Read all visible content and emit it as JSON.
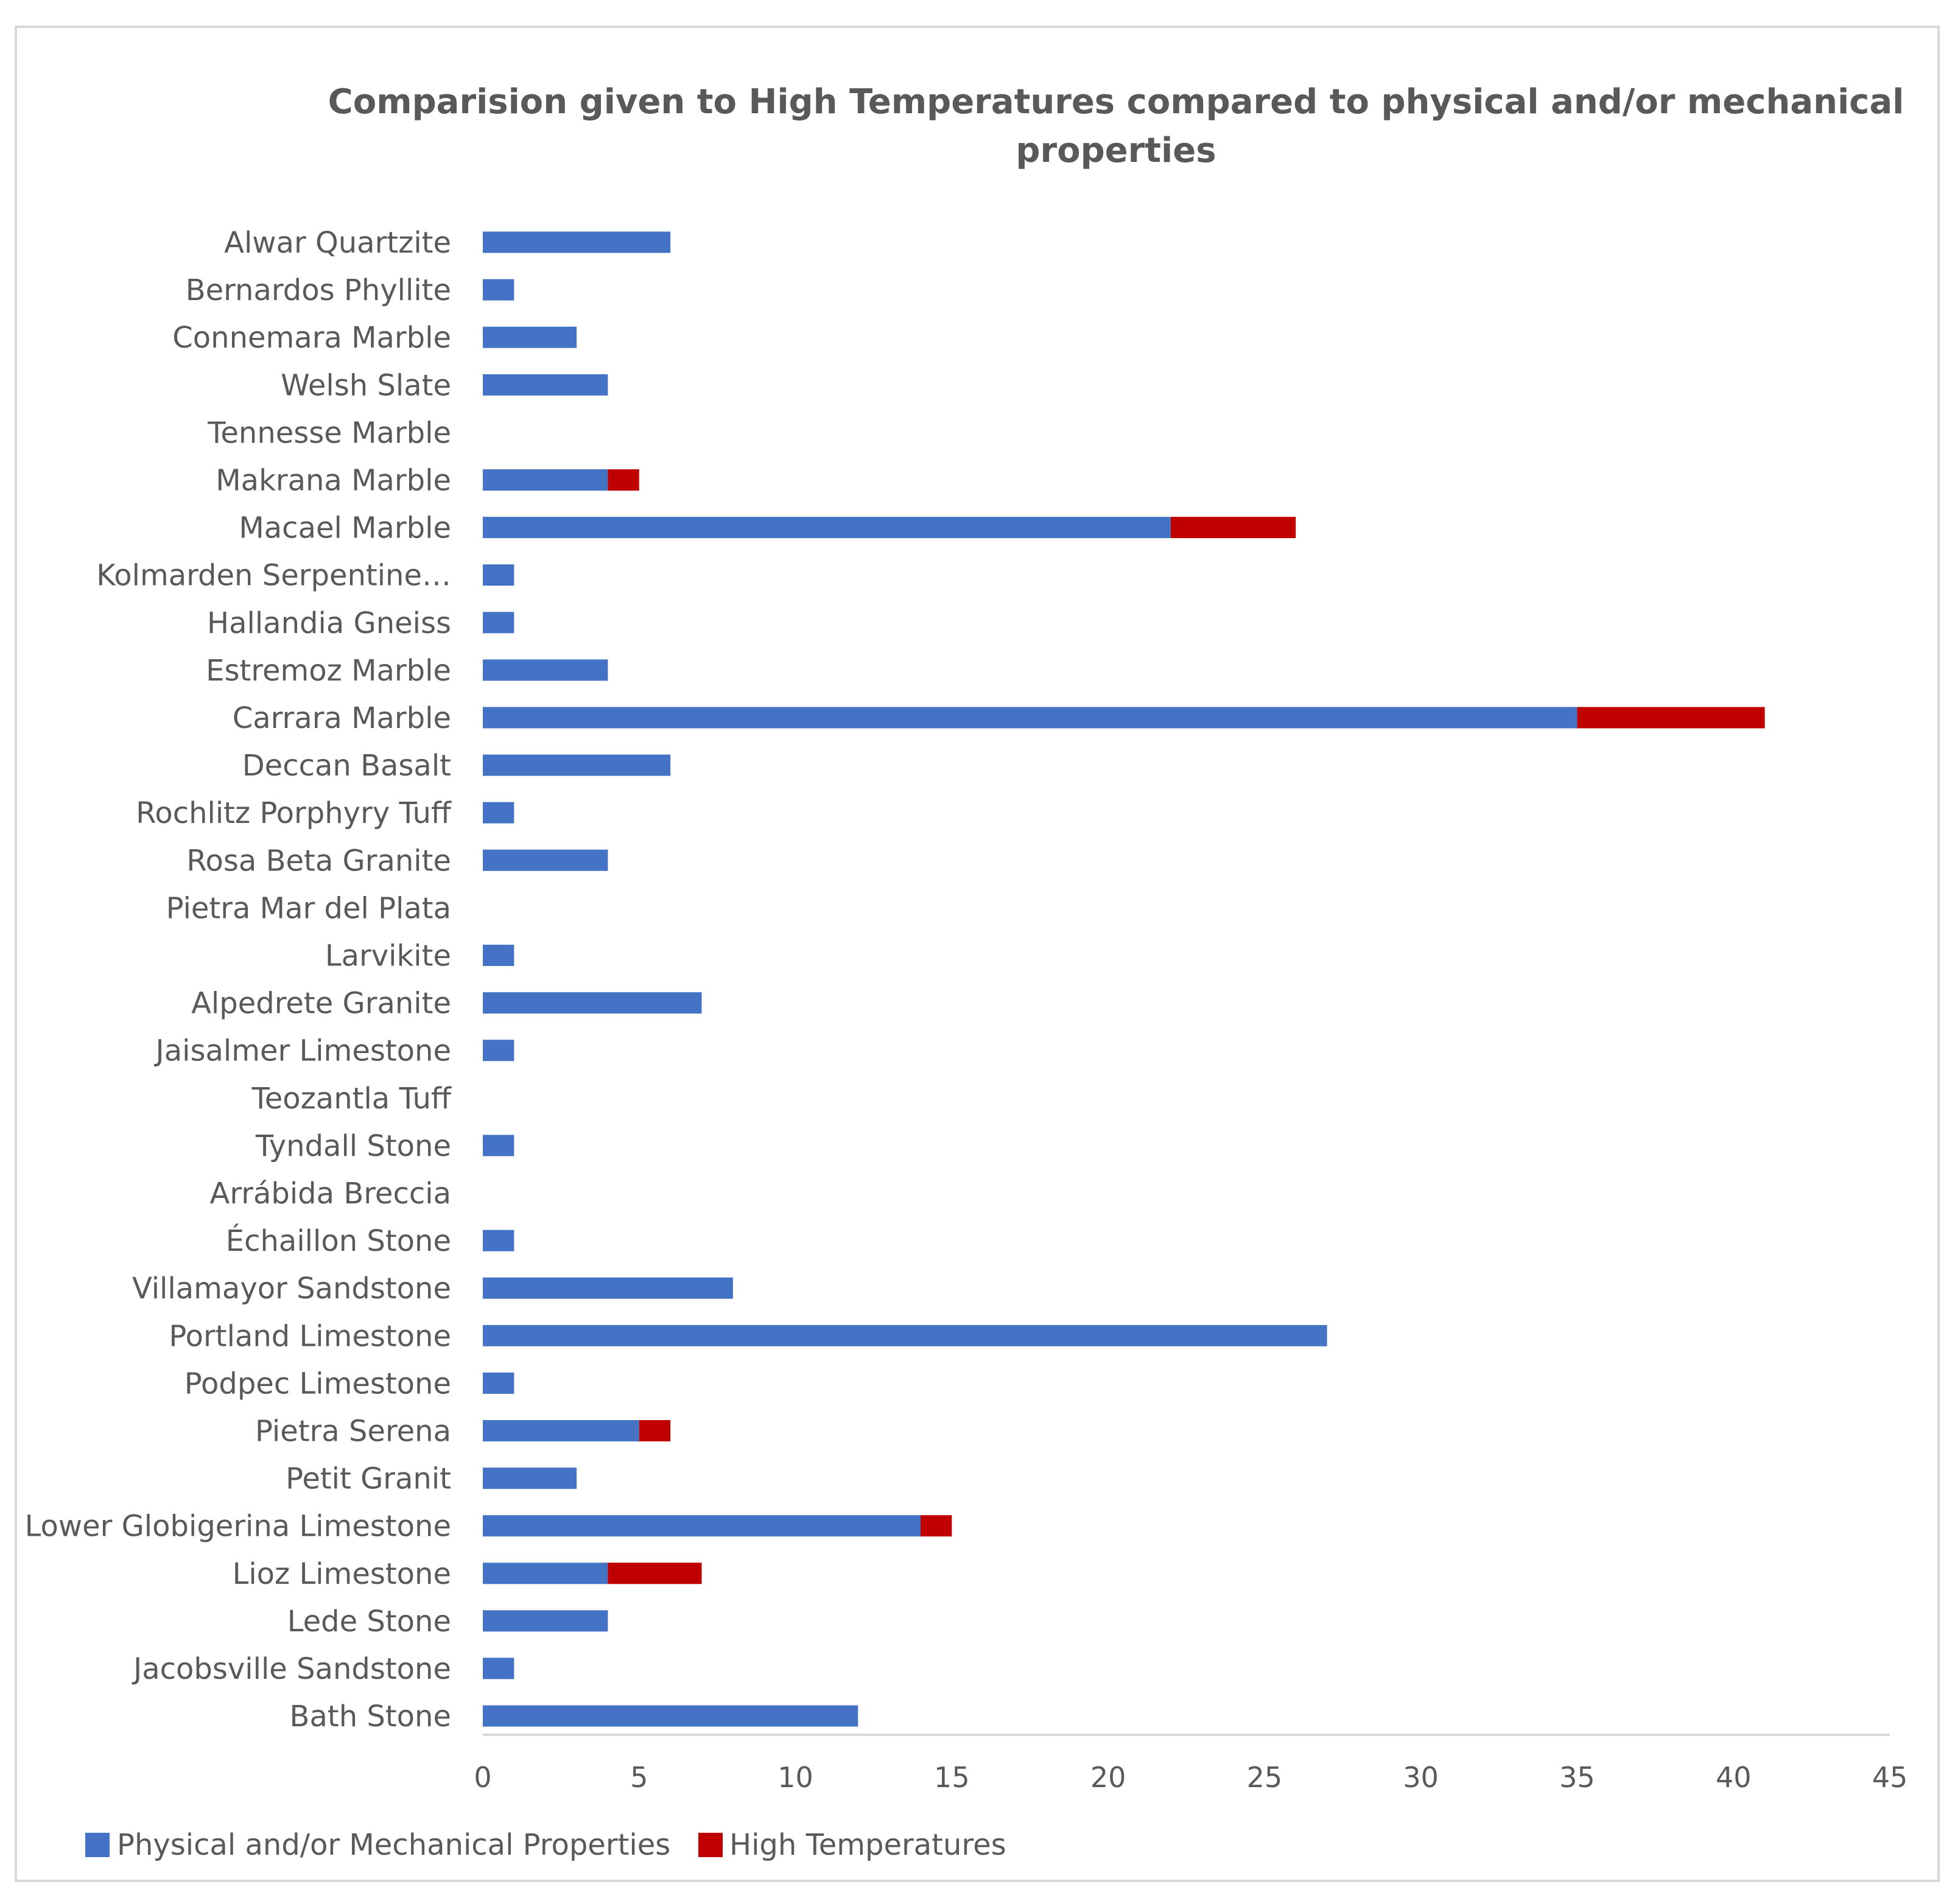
{
  "chart_data": {
    "type": "bar",
    "orientation": "horizontal",
    "stacked": true,
    "title": "Comparision given to High Temperatures compared to physical and/or mechanical properties",
    "title_lines": [
      "Comparision given to High Temperatures compared to physical and/or mechanical",
      "properties"
    ],
    "xlabel": "",
    "ylabel": "",
    "xlim": [
      0,
      45
    ],
    "x_ticks": [
      0,
      5,
      10,
      15,
      20,
      25,
      30,
      35,
      40,
      45
    ],
    "grid": false,
    "legend_position": "bottom-left",
    "categories": [
      "Alwar Quartzite",
      "Bernardos Phyllite",
      "Connemara Marble",
      "Welsh Slate",
      "Tennesse Marble",
      "Makrana Marble",
      "Macael Marble",
      "Kolmarden Serpentine…",
      "Hallandia Gneiss",
      "Estremoz Marble",
      "Carrara Marble",
      "Deccan Basalt",
      "Rochlitz Porphyry Tuff",
      "Rosa Beta Granite",
      "Pietra Mar del Plata",
      "Larvikite",
      "Alpedrete Granite",
      "Jaisalmer Limestone",
      "Teozantla Tuff",
      "Tyndall Stone",
      "Arrábida Breccia",
      "Échaillon Stone",
      "Villamayor Sandstone",
      "Portland Limestone",
      "Podpec Limestone",
      "Pietra Serena",
      "Petit Granit",
      "Lower Globigerina Limestone",
      "Lioz Limestone",
      "Lede Stone",
      "Jacobsville Sandstone",
      "Bath Stone"
    ],
    "series": [
      {
        "name": "Physical and/or Mechanical Properties",
        "color": "#4472c4",
        "values": [
          6,
          1,
          3,
          4,
          0,
          4,
          22,
          1,
          1,
          4,
          35,
          6,
          1,
          4,
          0,
          1,
          7,
          1,
          0,
          1,
          0,
          1,
          8,
          27,
          1,
          5,
          3,
          14,
          4,
          4,
          1,
          12
        ]
      },
      {
        "name": "High Temperatures",
        "color": "#c00000",
        "values": [
          0,
          0,
          0,
          0,
          0,
          1,
          4,
          0,
          0,
          0,
          6,
          0,
          0,
          0,
          0,
          0,
          0,
          0,
          0,
          0,
          0,
          0,
          0,
          0,
          0,
          1,
          0,
          1,
          3,
          0,
          0,
          0
        ]
      }
    ]
  }
}
